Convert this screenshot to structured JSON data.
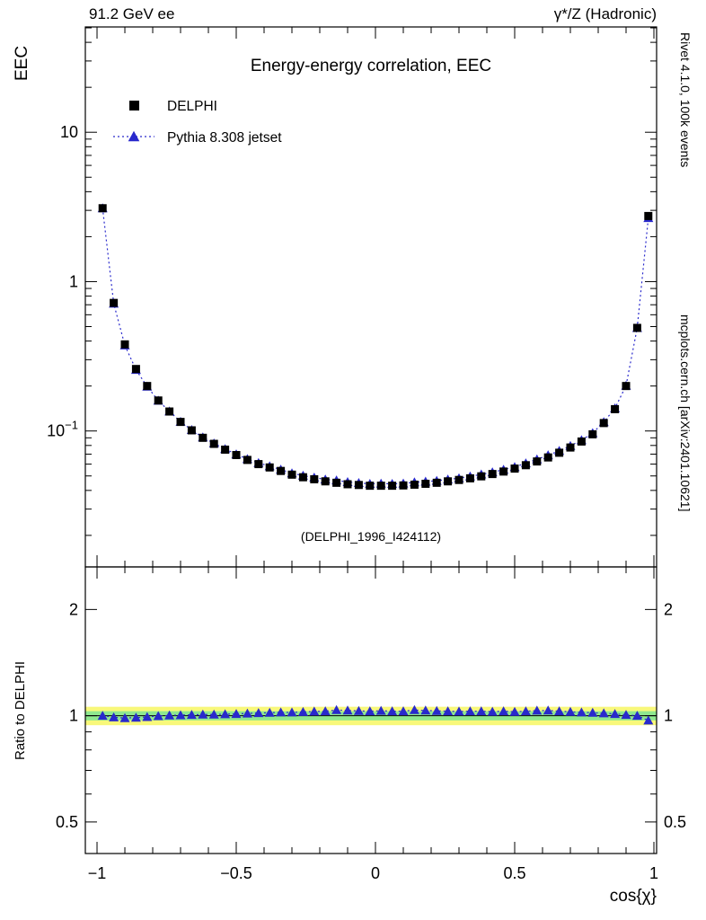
{
  "header": {
    "left_label": "91.2 GeV ee",
    "right_label": "γ*/Z (Hadronic)"
  },
  "title": "Energy-energy correlation, EEC",
  "watermark": "(DELPHI_1996_I424112)",
  "side_notes": {
    "top_right_vertical": "Rivet 4.1.0, 100k events",
    "bottom_right_vertical": "mcplots.cern.ch [arXiv:2401.10621]"
  },
  "legend": {
    "items": [
      {
        "label": "DELPHI",
        "marker": "black-square",
        "color": "#000000"
      },
      {
        "label": "Pythia 8.308 jetset",
        "marker": "blue-triangle-dotted-line",
        "color": "#2929cc"
      }
    ]
  },
  "axes": {
    "main": {
      "ylabel": "EEC",
      "yscale": "log",
      "ylim": [
        0.0123,
        50.7
      ],
      "yticks": [
        {
          "v": 10,
          "label": "10"
        },
        {
          "v": 1,
          "label": "1"
        },
        {
          "v": 0.1,
          "label": "10",
          "sup": "−1"
        }
      ]
    },
    "ratio": {
      "ylabel": "Ratio to DELPHI",
      "yscale": "log",
      "ylim": [
        0.407,
        2.64
      ],
      "yticks": [
        {
          "v": 2,
          "label": "2"
        },
        {
          "v": 1,
          "label": "1"
        },
        {
          "v": 0.5,
          "label": "0.5"
        }
      ]
    },
    "x": {
      "xlabel": "cos{χ}",
      "xlim": [
        -1.042,
        1.0097
      ],
      "xticks": [
        {
          "v": -1,
          "label": "−1"
        },
        {
          "v": -0.5,
          "label": "−0.5"
        },
        {
          "v": 0,
          "label": "0"
        },
        {
          "v": 0.5,
          "label": "0.5"
        },
        {
          "v": 1,
          "label": "1"
        }
      ],
      "minor_step": 0.1
    }
  },
  "chart_data": {
    "type": "scatter",
    "title": "Energy-energy correlation, EEC",
    "xlabel": "cos{χ}",
    "ylabel": "EEC",
    "yscale": "log",
    "legend_position": "top-left",
    "x": [
      -0.98,
      -0.94,
      -0.9,
      -0.86,
      -0.82,
      -0.78,
      -0.74,
      -0.7,
      -0.66,
      -0.62,
      -0.58,
      -0.54,
      -0.5,
      -0.46,
      -0.42,
      -0.38,
      -0.34,
      -0.3,
      -0.26,
      -0.22,
      -0.18,
      -0.14,
      -0.1,
      -0.06,
      -0.02,
      0.02,
      0.06,
      0.1,
      0.14,
      0.18,
      0.22,
      0.26,
      0.3,
      0.34,
      0.38,
      0.42,
      0.46,
      0.5,
      0.54,
      0.58,
      0.62,
      0.66,
      0.7,
      0.74,
      0.78,
      0.82,
      0.86,
      0.9,
      0.94,
      0.98
    ],
    "series": [
      {
        "name": "DELPHI",
        "marker": "square",
        "color": "#000000",
        "values": [
          3.1,
          0.72,
          0.38,
          0.26,
          0.2,
          0.16,
          0.135,
          0.115,
          0.101,
          0.09,
          0.082,
          0.075,
          0.069,
          0.064,
          0.06,
          0.057,
          0.054,
          0.051,
          0.049,
          0.0475,
          0.046,
          0.045,
          0.044,
          0.0435,
          0.043,
          0.043,
          0.043,
          0.0432,
          0.0437,
          0.0443,
          0.045,
          0.046,
          0.047,
          0.0482,
          0.0497,
          0.0515,
          0.0535,
          0.056,
          0.059,
          0.0625,
          0.0665,
          0.0715,
          0.0775,
          0.085,
          0.095,
          0.113,
          0.14,
          0.2,
          0.49,
          2.75
        ]
      },
      {
        "name": "Pythia 8.308 jetset",
        "marker": "triangle",
        "line": "dotted",
        "color": "#2929cc",
        "ratio_to_DELPHI": [
          1.0,
          0.99,
          0.985,
          0.988,
          0.992,
          0.998,
          1.002,
          1.004,
          1.006,
          1.008,
          1.008,
          1.01,
          1.012,
          1.015,
          1.018,
          1.02,
          1.022,
          1.022,
          1.025,
          1.028,
          1.03,
          1.038,
          1.035,
          1.032,
          1.03,
          1.033,
          1.03,
          1.03,
          1.038,
          1.035,
          1.032,
          1.03,
          1.028,
          1.03,
          1.03,
          1.027,
          1.03,
          1.026,
          1.03,
          1.034,
          1.035,
          1.03,
          1.026,
          1.022,
          1.02,
          1.016,
          1.012,
          1.006,
          1.0,
          0.97
        ]
      }
    ],
    "ratio_panel": {
      "ylabel": "Ratio to DELPHI",
      "reference_line": 1.0,
      "band_yellow": [
        0.94,
        1.06
      ],
      "band_yellow_color": "#f8f87a",
      "band_green": [
        0.97,
        1.03
      ],
      "band_green_color": "#8fe88f"
    }
  }
}
